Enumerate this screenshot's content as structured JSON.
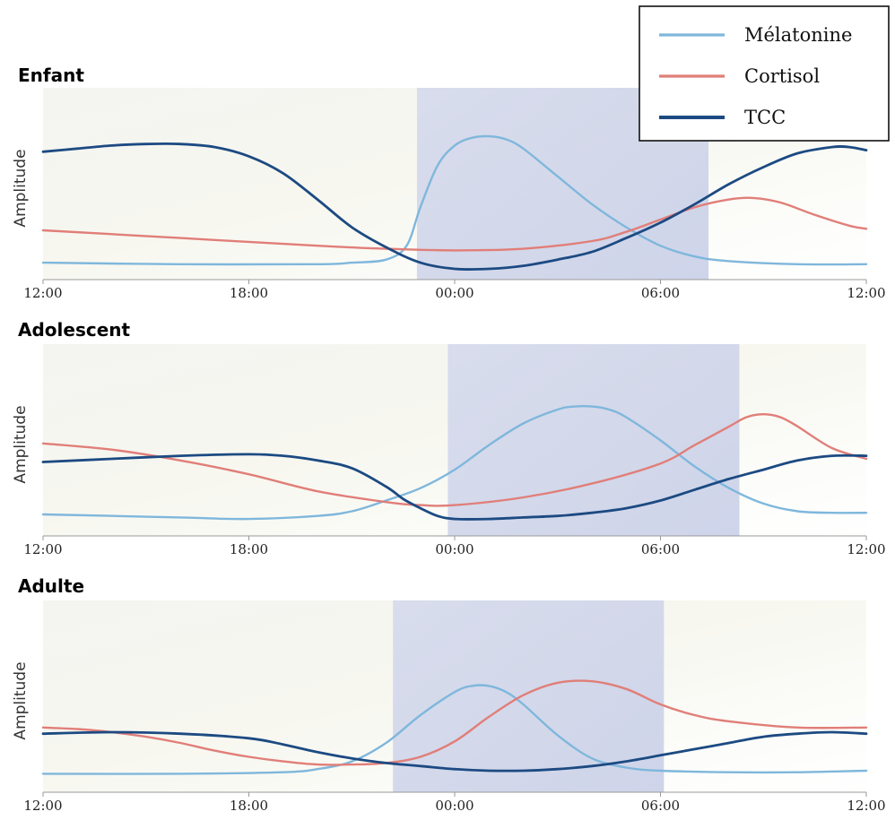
{
  "colors": {
    "melatonine": "#7fb7dc",
    "cortisol": "#e17e78",
    "tcc": "#1c4a82",
    "sleep": "#c8d0e8",
    "axis": "#999999"
  },
  "chart_data": {
    "type": "line",
    "legend": {
      "placement": "top-right",
      "entries": [
        {
          "key": "melatonine",
          "label": "Mélatonine"
        },
        {
          "key": "cortisol",
          "label": "Cortisol"
        },
        {
          "key": "tcc",
          "label": "TCC"
        }
      ]
    },
    "x_ticks": [
      "12:00",
      "18:00",
      "00:00",
      "06:00",
      "12:00"
    ],
    "x_unit": "hours since 12:00",
    "xlim": [
      0,
      24
    ],
    "ylim": [
      0,
      1
    ],
    "panels": [
      {
        "title": "Enfant",
        "ylabel": "Amplitude",
        "sleep_window": [
          22.9,
          31.4
        ],
        "series": [
          {
            "key": "melatonine",
            "points": [
              [
                0,
                0.04
              ],
              [
                4,
                0.03
              ],
              [
                8,
                0.03
              ],
              [
                9,
                0.04
              ],
              [
                10,
                0.06
              ],
              [
                10.6,
                0.15
              ],
              [
                11,
                0.4
              ],
              [
                11.5,
                0.67
              ],
              [
                12,
                0.8
              ],
              [
                12.5,
                0.85
              ],
              [
                13,
                0.86
              ],
              [
                13.5,
                0.84
              ],
              [
                14,
                0.78
              ],
              [
                15,
                0.6
              ],
              [
                16,
                0.42
              ],
              [
                17,
                0.27
              ],
              [
                18,
                0.15
              ],
              [
                19,
                0.08
              ],
              [
                20,
                0.05
              ],
              [
                22,
                0.03
              ],
              [
                24,
                0.03
              ]
            ]
          },
          {
            "key": "cortisol",
            "points": [
              [
                0,
                0.25
              ],
              [
                4,
                0.2
              ],
              [
                8,
                0.15
              ],
              [
                10,
                0.13
              ],
              [
                12,
                0.12
              ],
              [
                14,
                0.13
              ],
              [
                16,
                0.18
              ],
              [
                17,
                0.24
              ],
              [
                18,
                0.32
              ],
              [
                19,
                0.4
              ],
              [
                20,
                0.45
              ],
              [
                20.7,
                0.46
              ],
              [
                21.5,
                0.43
              ],
              [
                22.5,
                0.35
              ],
              [
                23.5,
                0.28
              ],
              [
                24,
                0.26
              ]
            ]
          },
          {
            "key": "tcc",
            "points": [
              [
                0,
                0.76
              ],
              [
                1,
                0.78
              ],
              [
                2,
                0.8
              ],
              [
                3,
                0.81
              ],
              [
                4,
                0.81
              ],
              [
                5,
                0.79
              ],
              [
                6,
                0.73
              ],
              [
                7,
                0.62
              ],
              [
                8,
                0.45
              ],
              [
                9,
                0.27
              ],
              [
                10,
                0.14
              ],
              [
                11,
                0.04
              ],
              [
                12,
                0.0
              ],
              [
                13,
                0.0
              ],
              [
                14,
                0.02
              ],
              [
                15,
                0.06
              ],
              [
                16,
                0.11
              ],
              [
                17,
                0.2
              ],
              [
                18,
                0.3
              ],
              [
                19,
                0.42
              ],
              [
                20,
                0.55
              ],
              [
                21,
                0.66
              ],
              [
                22,
                0.75
              ],
              [
                23,
                0.79
              ],
              [
                23.5,
                0.79
              ],
              [
                24,
                0.77
              ]
            ]
          }
        ]
      },
      {
        "title": "Adolescent",
        "ylabel": "Amplitude",
        "sleep_window": [
          23.8,
          32.3
        ],
        "series": [
          {
            "key": "melatonine",
            "points": [
              [
                0,
                0.07
              ],
              [
                4,
                0.05
              ],
              [
                6,
                0.04
              ],
              [
                8,
                0.06
              ],
              [
                9,
                0.09
              ],
              [
                10,
                0.16
              ],
              [
                11,
                0.24
              ],
              [
                12,
                0.36
              ],
              [
                13,
                0.52
              ],
              [
                14,
                0.66
              ],
              [
                15,
                0.75
              ],
              [
                15.5,
                0.77
              ],
              [
                16,
                0.77
              ],
              [
                16.5,
                0.75
              ],
              [
                17,
                0.7
              ],
              [
                18,
                0.55
              ],
              [
                19,
                0.38
              ],
              [
                20,
                0.24
              ],
              [
                21,
                0.14
              ],
              [
                22,
                0.09
              ],
              [
                23,
                0.08
              ],
              [
                24,
                0.08
              ]
            ]
          },
          {
            "key": "cortisol",
            "points": [
              [
                0,
                0.53
              ],
              [
                2,
                0.49
              ],
              [
                4,
                0.42
              ],
              [
                6,
                0.33
              ],
              [
                8,
                0.22
              ],
              [
                10,
                0.15
              ],
              [
                11,
                0.13
              ],
              [
                12,
                0.13
              ],
              [
                14,
                0.18
              ],
              [
                16,
                0.27
              ],
              [
                18,
                0.4
              ],
              [
                19,
                0.52
              ],
              [
                20,
                0.64
              ],
              [
                20.5,
                0.7
              ],
              [
                21,
                0.72
              ],
              [
                21.5,
                0.7
              ],
              [
                22,
                0.64
              ],
              [
                23,
                0.5
              ],
              [
                24,
                0.43
              ]
            ]
          },
          {
            "key": "tcc",
            "points": [
              [
                0,
                0.41
              ],
              [
                2,
                0.43
              ],
              [
                4,
                0.45
              ],
              [
                6,
                0.46
              ],
              [
                7,
                0.45
              ],
              [
                8,
                0.42
              ],
              [
                9,
                0.37
              ],
              [
                10,
                0.25
              ],
              [
                10.5,
                0.17
              ],
              [
                11,
                0.11
              ],
              [
                11.5,
                0.06
              ],
              [
                12,
                0.04
              ],
              [
                13,
                0.04
              ],
              [
                14,
                0.05
              ],
              [
                15,
                0.06
              ],
              [
                16,
                0.08
              ],
              [
                17,
                0.11
              ],
              [
                18,
                0.16
              ],
              [
                19,
                0.23
              ],
              [
                20,
                0.3
              ],
              [
                21,
                0.36
              ],
              [
                22,
                0.42
              ],
              [
                23,
                0.45
              ],
              [
                24,
                0.45
              ]
            ]
          }
        ]
      },
      {
        "title": "Adulte",
        "ylabel": "Amplitude",
        "sleep_window": [
          22.2,
          30.1
        ],
        "series": [
          {
            "key": "melatonine",
            "points": [
              [
                0,
                0.05
              ],
              [
                4,
                0.05
              ],
              [
                7,
                0.06
              ],
              [
                8,
                0.08
              ],
              [
                9,
                0.13
              ],
              [
                10,
                0.25
              ],
              [
                11,
                0.43
              ],
              [
                12,
                0.58
              ],
              [
                12.5,
                0.62
              ],
              [
                13,
                0.62
              ],
              [
                13.5,
                0.58
              ],
              [
                14,
                0.5
              ],
              [
                15,
                0.3
              ],
              [
                16,
                0.15
              ],
              [
                17,
                0.09
              ],
              [
                18,
                0.07
              ],
              [
                20,
                0.06
              ],
              [
                22,
                0.06
              ],
              [
                24,
                0.07
              ]
            ]
          },
          {
            "key": "cortisol",
            "points": [
              [
                0,
                0.35
              ],
              [
                1,
                0.34
              ],
              [
                2,
                0.32
              ],
              [
                3,
                0.29
              ],
              [
                4,
                0.25
              ],
              [
                5,
                0.2
              ],
              [
                6,
                0.16
              ],
              [
                7,
                0.13
              ],
              [
                8,
                0.11
              ],
              [
                9,
                0.11
              ],
              [
                10,
                0.12
              ],
              [
                11,
                0.16
              ],
              [
                12,
                0.26
              ],
              [
                13,
                0.42
              ],
              [
                14,
                0.56
              ],
              [
                15,
                0.64
              ],
              [
                16,
                0.65
              ],
              [
                17,
                0.6
              ],
              [
                18,
                0.5
              ],
              [
                19,
                0.43
              ],
              [
                20,
                0.39
              ],
              [
                22,
                0.35
              ],
              [
                24,
                0.35
              ]
            ]
          },
          {
            "key": "tcc",
            "points": [
              [
                0,
                0.31
              ],
              [
                2,
                0.32
              ],
              [
                4,
                0.31
              ],
              [
                6,
                0.28
              ],
              [
                7,
                0.24
              ],
              [
                8,
                0.19
              ],
              [
                9,
                0.15
              ],
              [
                10,
                0.12
              ],
              [
                11,
                0.1
              ],
              [
                12,
                0.08
              ],
              [
                13,
                0.07
              ],
              [
                14,
                0.07
              ],
              [
                15,
                0.08
              ],
              [
                16,
                0.1
              ],
              [
                17,
                0.13
              ],
              [
                18,
                0.17
              ],
              [
                19,
                0.21
              ],
              [
                20,
                0.25
              ],
              [
                21,
                0.29
              ],
              [
                22,
                0.31
              ],
              [
                23,
                0.32
              ],
              [
                24,
                0.31
              ]
            ]
          }
        ]
      }
    ]
  }
}
